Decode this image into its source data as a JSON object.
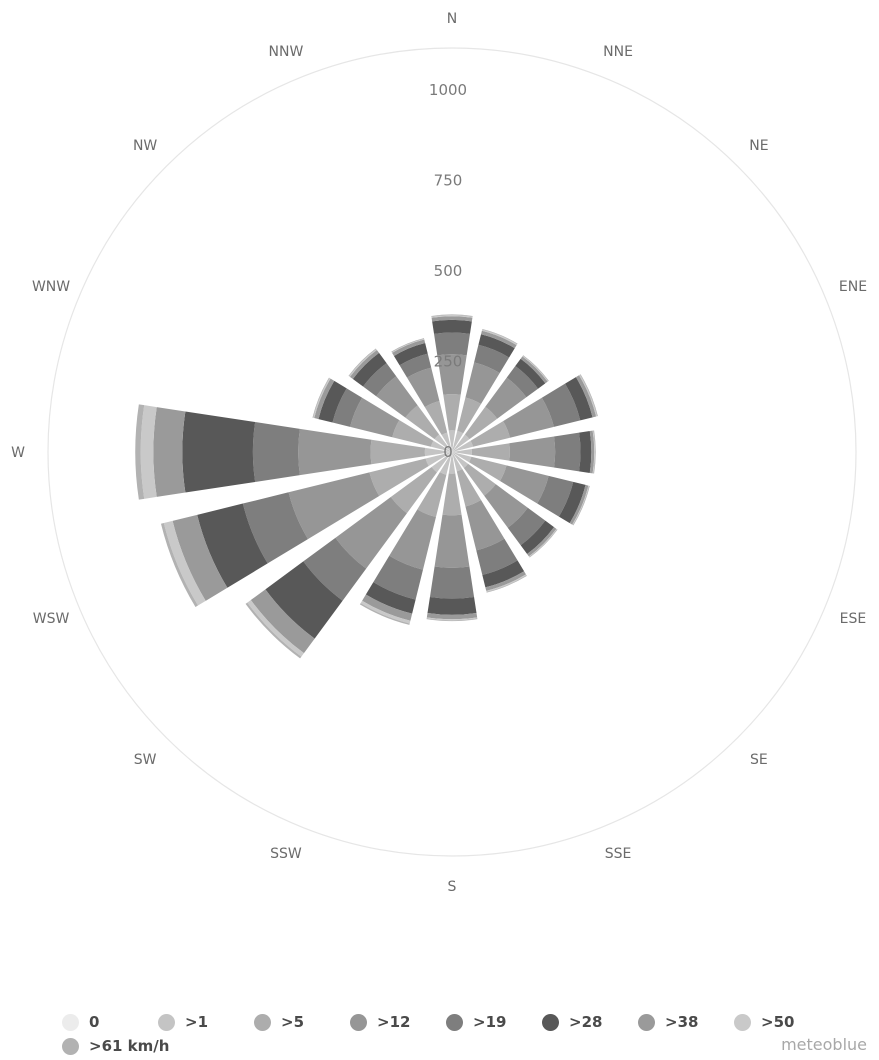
{
  "chart_data": {
    "type": "wind-rose",
    "directions": [
      "N",
      "NNE",
      "NE",
      "ENE",
      "E",
      "ESE",
      "SE",
      "SSE",
      "S",
      "SSW",
      "SW",
      "WSW",
      "W",
      "WNW",
      "NW",
      "NNW"
    ],
    "radial_ticks": [
      "0",
      "250",
      "500",
      "750",
      "1000"
    ],
    "rmax": 1000,
    "speed_bins": [
      "0",
      ">1",
      ">5",
      ">12",
      ">19",
      ">28",
      ">38",
      ">50",
      ">61 km/h"
    ],
    "bin_colors": [
      "#ececec",
      "#c4c4c4",
      "#adadad",
      "#969696",
      "#7e7e7e",
      "#585858",
      "#9a9a9a",
      "#c9c9c9",
      "#b2b2b2"
    ],
    "series": [
      {
        "direction": "N",
        "values": [
          0,
          60,
          100,
          110,
          60,
          35,
          10,
          3,
          2
        ]
      },
      {
        "direction": "NNE",
        "values": [
          0,
          60,
          95,
          100,
          50,
          30,
          10,
          3,
          2
        ]
      },
      {
        "direction": "NE",
        "values": [
          0,
          60,
          95,
          100,
          40,
          25,
          8,
          2,
          2
        ]
      },
      {
        "direction": "ENE",
        "values": [
          0,
          60,
          105,
          125,
          75,
          35,
          10,
          3,
          2
        ]
      },
      {
        "direction": "E",
        "values": [
          0,
          55,
          105,
          125,
          70,
          30,
          8,
          2,
          2
        ]
      },
      {
        "direction": "ESE",
        "values": [
          0,
          55,
          100,
          120,
          70,
          35,
          8,
          2,
          2
        ]
      },
      {
        "direction": "SE",
        "values": [
          0,
          55,
          95,
          110,
          60,
          30,
          8,
          2,
          2
        ]
      },
      {
        "direction": "SSE",
        "values": [
          0,
          55,
          100,
          125,
          70,
          35,
          10,
          3,
          2
        ]
      },
      {
        "direction": "S",
        "values": [
          0,
          60,
          115,
          145,
          85,
          45,
          12,
          3,
          2
        ]
      },
      {
        "direction": "SSW",
        "values": [
          0,
          65,
          120,
          150,
          85,
          40,
          20,
          8,
          4
        ]
      },
      {
        "direction": "SW",
        "values": [
          0,
          70,
          140,
          190,
          110,
          130,
          50,
          12,
          6
        ]
      },
      {
        "direction": "WSW",
        "values": [
          0,
          75,
          160,
          230,
          130,
          130,
          70,
          25,
          8
        ]
      },
      {
        "direction": "W",
        "values": [
          0,
          75,
          150,
          200,
          125,
          195,
          80,
          35,
          15
        ]
      },
      {
        "direction": "WNW",
        "values": [
          0,
          60,
          110,
          120,
          50,
          40,
          12,
          3,
          2
        ]
      },
      {
        "direction": "NW",
        "values": [
          0,
          60,
          100,
          100,
          45,
          35,
          10,
          3,
          2
        ]
      },
      {
        "direction": "NNW",
        "values": [
          0,
          55,
          90,
          95,
          40,
          30,
          10,
          2,
          2
        ]
      }
    ]
  },
  "legend": {
    "items": [
      {
        "label": "0",
        "color": "#ececec"
      },
      {
        "label": ">1",
        "color": "#c4c4c4"
      },
      {
        "label": ">5",
        "color": "#adadad"
      },
      {
        "label": ">12",
        "color": "#969696"
      },
      {
        "label": ">19",
        "color": "#7e7e7e"
      },
      {
        "label": ">28",
        "color": "#585858"
      },
      {
        "label": ">38",
        "color": "#9a9a9a"
      },
      {
        "label": ">50",
        "color": "#c9c9c9"
      },
      {
        "label": ">61 km/h",
        "color": "#b2b2b2"
      }
    ]
  },
  "brand": "meteoblue"
}
